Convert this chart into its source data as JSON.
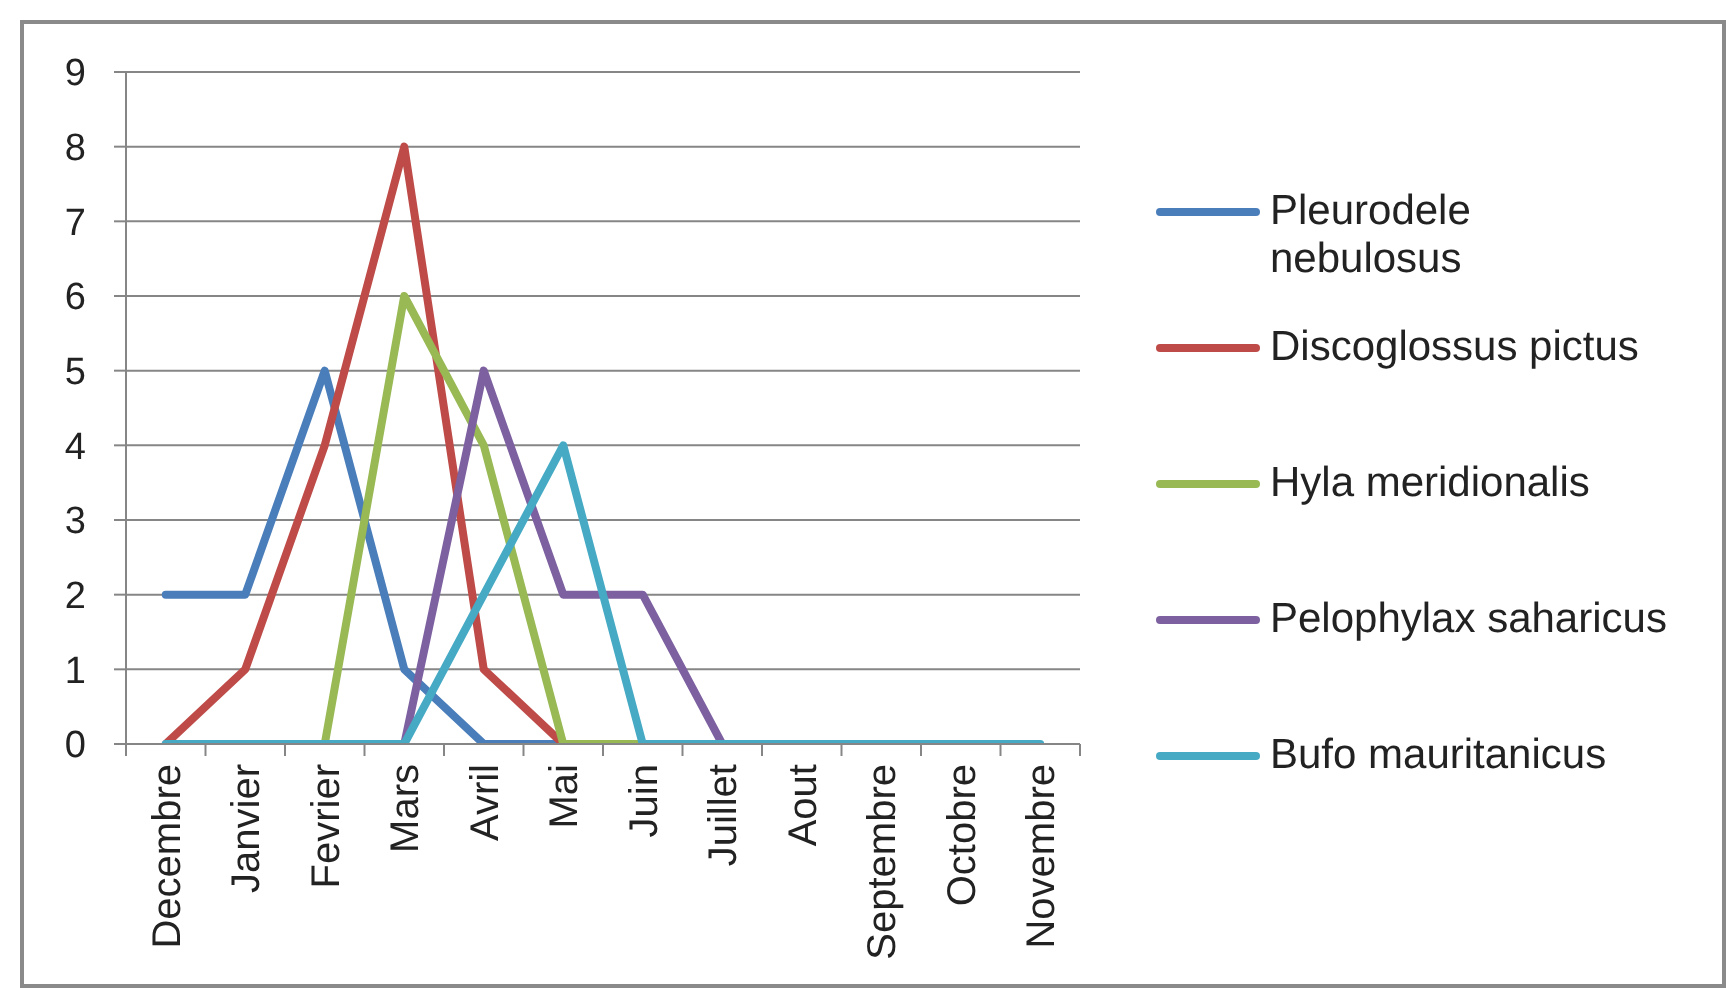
{
  "chart_data": {
    "type": "line",
    "categories": [
      "Decembre",
      "Janvier",
      "Fevrier",
      "Mars",
      "Avril",
      "Mai",
      "Juin",
      "Juillet",
      "Aout",
      "Septembre",
      "Octobre",
      "Novembre"
    ],
    "series": [
      {
        "name": "Pleurodele nebulosus",
        "color": "#4a7ebb",
        "values": [
          2,
          2,
          5,
          1,
          0,
          0,
          null,
          null,
          null,
          null,
          null,
          null
        ]
      },
      {
        "name": "Discoglossus pictus",
        "color": "#be4b48",
        "values": [
          0,
          1,
          4,
          8,
          1,
          0,
          null,
          null,
          null,
          null,
          null,
          null
        ]
      },
      {
        "name": "Hyla meridionalis",
        "color": "#98b954",
        "values": [
          null,
          null,
          0,
          6,
          4,
          0,
          0,
          null,
          null,
          null,
          null,
          null
        ]
      },
      {
        "name": "Pelophylax saharicus",
        "color": "#7d60a0",
        "values": [
          null,
          null,
          null,
          0,
          5,
          2,
          2,
          0,
          null,
          null,
          null,
          null
        ]
      },
      {
        "name": "Bufo mauritanicus",
        "color": "#46aac5",
        "values": [
          0,
          0,
          0,
          0,
          2,
          4,
          0,
          0,
          0,
          0,
          0,
          0
        ]
      }
    ],
    "ylim": [
      0,
      9
    ],
    "yticks": [
      0,
      1,
      2,
      3,
      4,
      5,
      6,
      7,
      8,
      9
    ],
    "grid": "y",
    "legend": "right"
  }
}
